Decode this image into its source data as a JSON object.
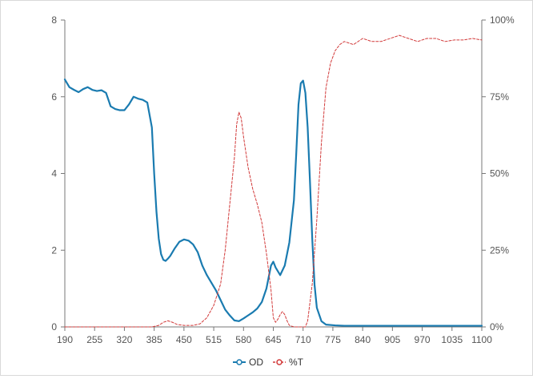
{
  "chart_data": {
    "type": "line",
    "title": "",
    "x_ticks": [
      "190",
      "255",
      "320",
      "385",
      "450",
      "515",
      "580",
      "645",
      "710",
      "775",
      "840",
      "905",
      "970",
      "1035",
      "1100"
    ],
    "xlim": [
      190,
      1100
    ],
    "y_left_ticks": [
      "0",
      "2",
      "4",
      "6",
      "8"
    ],
    "ylim_left": [
      0,
      8
    ],
    "y_right_ticks": [
      "0%",
      "25%",
      "50%",
      "75%",
      "100%"
    ],
    "ylim_right": [
      0,
      100
    ],
    "grid": false,
    "legend_position": "bottom-center",
    "series": [
      {
        "name": "OD",
        "axis": "left",
        "color": "#1a7bb0",
        "style": "solid",
        "x": [
          190,
          200,
          210,
          220,
          230,
          240,
          250,
          260,
          270,
          280,
          290,
          300,
          310,
          320,
          330,
          340,
          350,
          360,
          370,
          380,
          385,
          390,
          395,
          400,
          405,
          410,
          415,
          420,
          430,
          440,
          450,
          460,
          470,
          480,
          490,
          500,
          510,
          520,
          530,
          540,
          550,
          560,
          570,
          580,
          590,
          600,
          610,
          620,
          630,
          640,
          645,
          650,
          660,
          670,
          680,
          690,
          695,
          700,
          705,
          710,
          715,
          720,
          725,
          730,
          735,
          740,
          750,
          760,
          780,
          800,
          850,
          900,
          950,
          1000,
          1050,
          1100
        ],
        "y": [
          6.45,
          6.25,
          6.18,
          6.12,
          6.2,
          6.25,
          6.18,
          6.15,
          6.17,
          6.1,
          5.75,
          5.68,
          5.65,
          5.65,
          5.8,
          6.0,
          5.95,
          5.92,
          5.85,
          5.2,
          4.0,
          3.0,
          2.3,
          1.9,
          1.75,
          1.72,
          1.78,
          1.85,
          2.05,
          2.22,
          2.28,
          2.25,
          2.15,
          1.95,
          1.6,
          1.35,
          1.15,
          0.95,
          0.7,
          0.45,
          0.3,
          0.17,
          0.15,
          0.22,
          0.3,
          0.38,
          0.48,
          0.65,
          1.0,
          1.6,
          1.7,
          1.55,
          1.35,
          1.6,
          2.2,
          3.3,
          4.5,
          5.8,
          6.35,
          6.42,
          6.1,
          5.2,
          3.8,
          2.3,
          1.1,
          0.5,
          0.15,
          0.06,
          0.04,
          0.03,
          0.03,
          0.03,
          0.03,
          0.03,
          0.03,
          0.03
        ]
      },
      {
        "name": "%T",
        "axis": "right",
        "color": "#d23a3a",
        "style": "dashed",
        "x": [
          190,
          300,
          380,
          395,
          405,
          415,
          425,
          435,
          450,
          470,
          485,
          500,
          515,
          530,
          540,
          550,
          560,
          565,
          570,
          575,
          580,
          590,
          600,
          610,
          620,
          630,
          640,
          645,
          650,
          655,
          660,
          665,
          670,
          675,
          680,
          690,
          700,
          710,
          715,
          720,
          730,
          740,
          750,
          760,
          770,
          780,
          790,
          800,
          820,
          840,
          860,
          880,
          900,
          920,
          940,
          960,
          980,
          1000,
          1020,
          1040,
          1060,
          1080,
          1100
        ],
        "y": [
          0,
          0,
          0,
          0.5,
          1.5,
          2,
          1.5,
          0.8,
          0.5,
          0.5,
          1,
          3,
          7,
          14,
          25,
          40,
          55,
          66,
          70,
          68,
          62,
          52,
          45,
          40,
          34,
          24,
          12,
          3,
          1.5,
          2.5,
          4,
          5,
          4,
          2,
          0.5,
          0,
          0,
          0,
          0,
          2,
          14,
          35,
          60,
          78,
          86,
          90,
          92,
          93,
          92,
          94,
          93,
          93,
          94,
          95,
          94,
          93,
          94,
          94,
          93,
          93.5,
          93.5,
          94,
          93.5
        ]
      }
    ]
  }
}
